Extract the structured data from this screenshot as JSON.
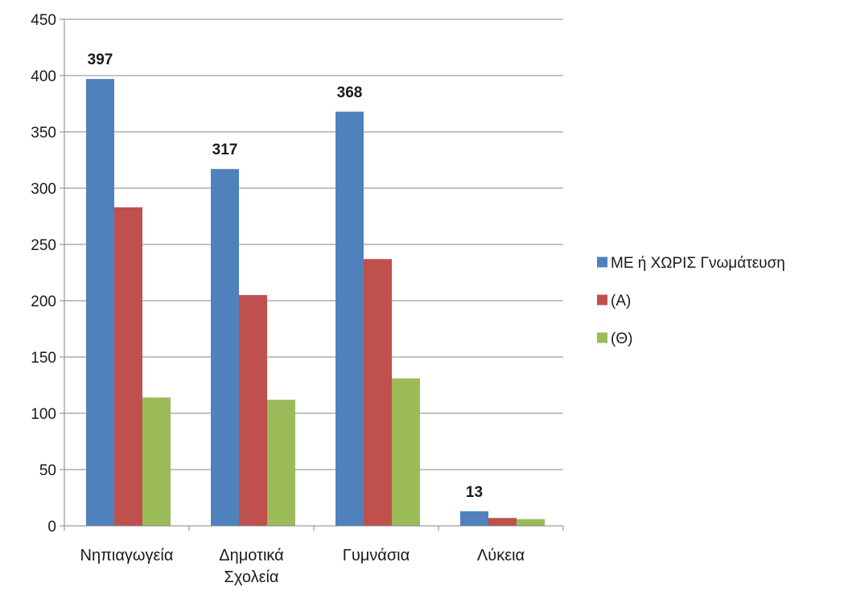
{
  "chart_data": {
    "type": "bar",
    "title": "",
    "xlabel": "",
    "ylabel": "",
    "categories": [
      [
        "Νηπιαγωγεία"
      ],
      [
        "Δημοτικά",
        "Σχολεία"
      ],
      [
        "Γυμνάσια"
      ],
      [
        "Λύκεια"
      ]
    ],
    "series": [
      {
        "name": "ΜΕ ή ΧΩΡΙΣ Γνωμάτευση",
        "color": "#4f81bd",
        "values": [
          397,
          317,
          368,
          13
        ]
      },
      {
        "name": "(Α)",
        "color": "#c0504d",
        "values": [
          283,
          205,
          237,
          7
        ]
      },
      {
        "name": "(Θ)",
        "color": "#9bbb59",
        "values": [
          114,
          112,
          131,
          6
        ]
      }
    ],
    "data_labels": {
      "series_index": 0,
      "values": [
        "397",
        "317",
        "368",
        "13"
      ]
    },
    "ylim": [
      0,
      450
    ],
    "yticks": [
      0,
      50,
      100,
      150,
      200,
      250,
      300,
      350,
      400,
      450
    ],
    "grid": true,
    "legend_position": "right"
  }
}
